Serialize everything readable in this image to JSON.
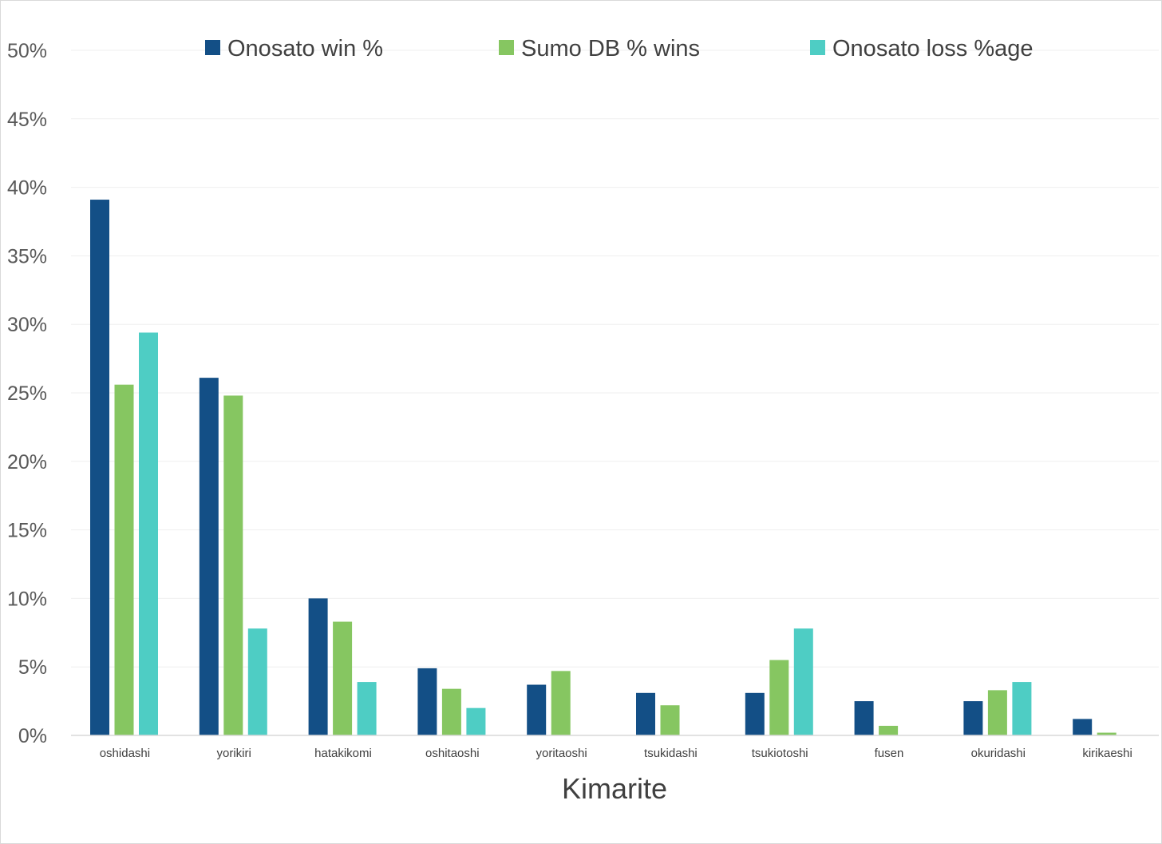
{
  "chart_data": {
    "type": "bar",
    "title": "",
    "xlabel": "Kimarite",
    "ylabel": "",
    "ylim": [
      0,
      50
    ],
    "ytick_step": 5,
    "ytick_labels": [
      "0%",
      "5%",
      "10%",
      "15%",
      "20%",
      "25%",
      "30%",
      "35%",
      "40%",
      "45%",
      "50%"
    ],
    "grid": true,
    "legend_position": "top",
    "categories": [
      "oshidashi",
      "yorikiri",
      "hatakikomi",
      "oshitaoshi",
      "yoritaoshi",
      "tsukidashi",
      "tsukiotoshi",
      "fusen",
      "okuridashi",
      "kirikaeshi"
    ],
    "series": [
      {
        "name": "Onosato win %",
        "color": "#134f86",
        "values": [
          39.1,
          26.1,
          10.0,
          4.9,
          3.7,
          3.1,
          3.1,
          2.5,
          2.5,
          1.2
        ]
      },
      {
        "name": "Sumo DB % wins",
        "color": "#86c661",
        "values": [
          25.6,
          24.8,
          8.3,
          3.4,
          4.7,
          2.2,
          5.5,
          0.7,
          3.3,
          0.2
        ]
      },
      {
        "name": "Onosato loss %age",
        "color": "#4ecdc4",
        "values": [
          29.4,
          7.8,
          3.9,
          2.0,
          0,
          0,
          7.8,
          0,
          3.9,
          0
        ]
      }
    ]
  }
}
